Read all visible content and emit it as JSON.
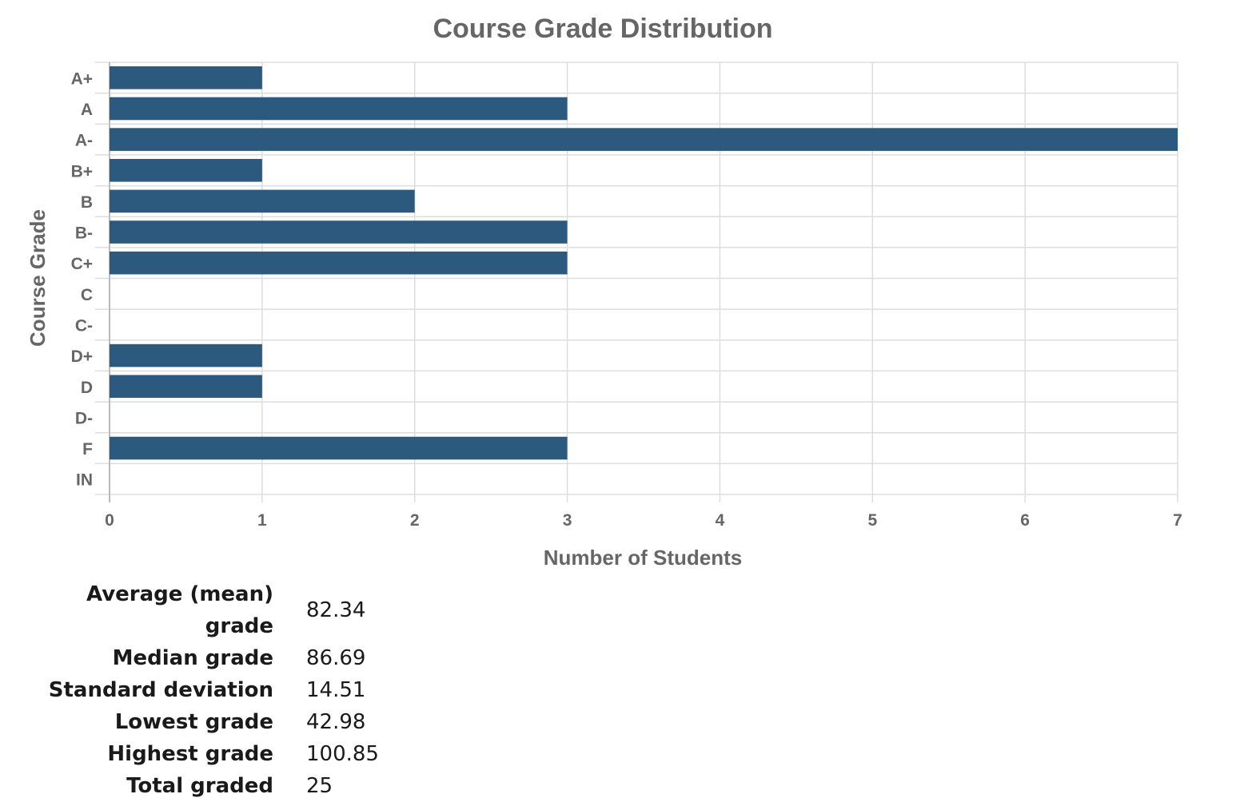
{
  "chart_data": {
    "type": "bar",
    "orientation": "horizontal",
    "title": "Course Grade Distribution",
    "xlabel": "Number of Students",
    "ylabel": "Course Grade",
    "categories": [
      "A+",
      "A",
      "A-",
      "B+",
      "B",
      "B-",
      "C+",
      "C",
      "C-",
      "D+",
      "D",
      "D-",
      "F",
      "IN"
    ],
    "values": [
      1,
      3,
      7,
      1,
      2,
      3,
      3,
      0,
      0,
      1,
      1,
      0,
      3,
      0
    ],
    "xlim": [
      0,
      7
    ],
    "xticks": [
      0,
      1,
      2,
      3,
      4,
      5,
      6,
      7
    ],
    "grid": true,
    "bar_color": "#2b5a7e"
  },
  "stats": [
    {
      "label": "Average (mean) grade",
      "value": "82.34"
    },
    {
      "label": "Median grade",
      "value": "86.69"
    },
    {
      "label": "Standard deviation",
      "value": "14.51"
    },
    {
      "label": "Lowest grade",
      "value": "42.98"
    },
    {
      "label": "Highest grade",
      "value": "100.85"
    },
    {
      "label": "Total graded",
      "value": "25"
    }
  ]
}
